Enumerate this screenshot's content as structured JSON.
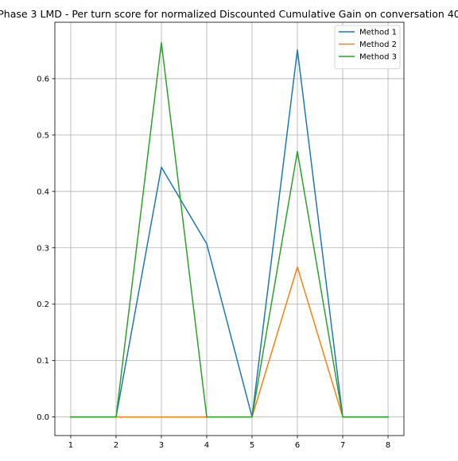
{
  "chart_data": {
    "type": "line",
    "title": "Phase 3 LMD - Per turn score for normalized Discounted Cumulative Gain on conversation 40",
    "xlabel": "",
    "ylabel": "",
    "x": [
      1,
      2,
      3,
      4,
      5,
      6,
      7,
      8
    ],
    "xlim": [
      0.65,
      8.35
    ],
    "ylim": [
      -0.033,
      0.7
    ],
    "xticks": [
      1,
      2,
      3,
      4,
      5,
      6,
      7,
      8
    ],
    "yticks": [
      0.0,
      0.1,
      0.2,
      0.3,
      0.4,
      0.5,
      0.6
    ],
    "ytick_labels": [
      "0.0",
      "0.1",
      "0.2",
      "0.3",
      "0.4",
      "0.5",
      "0.6"
    ],
    "grid": true,
    "legend_position": "top-right",
    "series": [
      {
        "name": "Method 1",
        "color": "#1f77b4",
        "values": [
          0.0,
          0.0,
          0.443,
          0.307,
          0.0,
          0.651,
          0.0,
          0.0
        ]
      },
      {
        "name": "Method 2",
        "color": "#ff7f0e",
        "values": [
          0.0,
          0.0,
          0.0,
          0.0,
          0.0,
          0.266,
          0.0,
          0.0
        ]
      },
      {
        "name": "Method 3",
        "color": "#2ca02c",
        "values": [
          0.0,
          0.0,
          0.664,
          0.0,
          0.0,
          0.471,
          0.0,
          0.0
        ]
      }
    ]
  }
}
